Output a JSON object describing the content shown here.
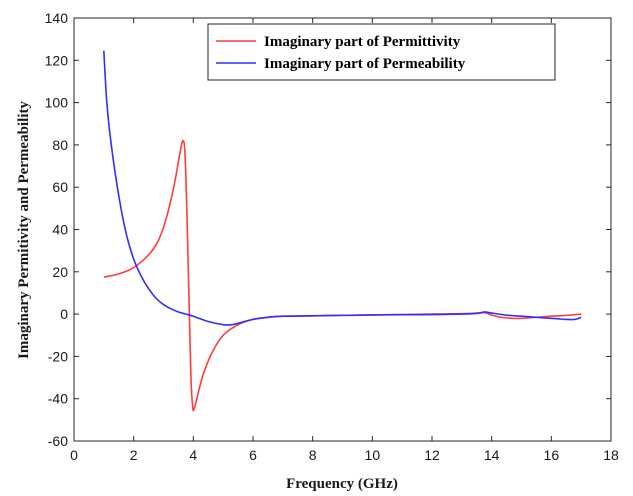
{
  "chart_data": {
    "type": "line",
    "xlabel": "Frequency (GHz)",
    "ylabel": "Imaginary Permitivity and Permeability",
    "xlim": [
      0,
      18
    ],
    "ylim": [
      -60,
      140
    ],
    "xticks": [
      0,
      2,
      4,
      6,
      8,
      10,
      12,
      14,
      16,
      18
    ],
    "yticks": [
      -60,
      -40,
      -20,
      0,
      20,
      40,
      60,
      80,
      100,
      120,
      140
    ],
    "grid": false,
    "legend_position": "top-right",
    "series": [
      {
        "name": "Imaginary part of Permittivity",
        "color": "#ff3b3b",
        "x": [
          1.0,
          1.5,
          2.0,
          2.5,
          2.8,
          3.0,
          3.2,
          3.4,
          3.55,
          3.65,
          3.72,
          3.78,
          3.85,
          3.92,
          3.98,
          4.02,
          4.1,
          4.3,
          4.6,
          5.0,
          5.5,
          6.0,
          6.5,
          7.0,
          8.0,
          9.0,
          10.0,
          11.0,
          12.0,
          13.0,
          13.5,
          13.8,
          14.0,
          14.3,
          14.7,
          15.0,
          15.5,
          16.0,
          16.5,
          17.0
        ],
        "y": [
          17.5,
          19,
          22,
          28,
          34,
          41,
          51,
          64,
          76,
          82,
          76,
          50,
          10,
          -30,
          -44,
          -45,
          -41,
          -30,
          -19,
          -10,
          -5,
          -2.5,
          -1.5,
          -1,
          -0.8,
          -0.6,
          -0.4,
          -0.2,
          0,
          0.2,
          0.5,
          0.6,
          -0.5,
          -1.5,
          -2,
          -2,
          -1.5,
          -1,
          -0.6,
          0
        ]
      },
      {
        "name": "Imaginary part of Permeability",
        "color": "#2f2fff",
        "x": [
          1.0,
          1.1,
          1.25,
          1.5,
          1.75,
          2.0,
          2.25,
          2.5,
          2.75,
          3.0,
          3.25,
          3.5,
          3.75,
          4.0,
          4.5,
          5.0,
          5.3,
          5.6,
          6.0,
          6.5,
          7.0,
          8.0,
          9.0,
          10.0,
          11.0,
          12.0,
          13.0,
          13.5,
          13.75,
          14.0,
          14.5,
          15.0,
          15.5,
          16.0,
          16.5,
          16.8,
          17.0
        ],
        "y": [
          124.5,
          100,
          80,
          56,
          38,
          26,
          18,
          12,
          7.5,
          4.5,
          2.5,
          1,
          0,
          -1,
          -3.5,
          -5,
          -5,
          -4,
          -2.5,
          -1.5,
          -1,
          -0.8,
          -0.6,
          -0.4,
          -0.3,
          -0.2,
          0,
          0.3,
          1,
          0.5,
          -0.5,
          -1,
          -1.5,
          -2,
          -2.5,
          -2.5,
          -1.5
        ]
      }
    ]
  }
}
